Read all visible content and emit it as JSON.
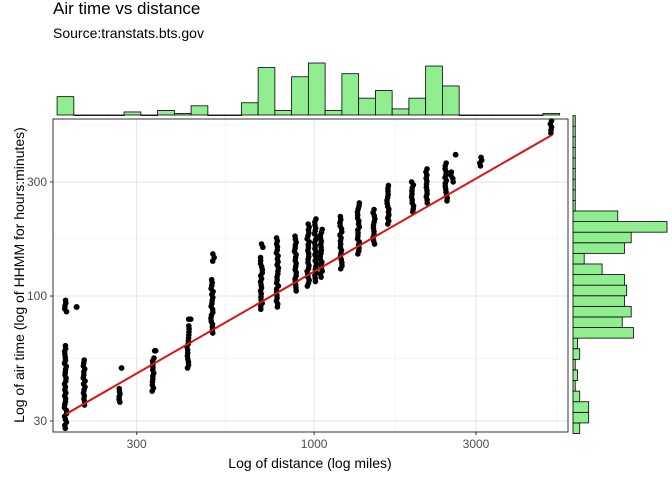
{
  "chart_data": {
    "type": "scatter",
    "title": "Air time vs distance",
    "subtitle": "Source:transtats.bts.gov",
    "xlabel": "Log of distance (log miles)",
    "ylabel": "Log of air time (log of HHMM for hours:minutes)",
    "x_scale": "log10",
    "y_scale": "log10",
    "xlim": [
      170,
      5600
    ],
    "ylim": [
      27,
      550
    ],
    "x_ticks": [
      {
        "value": 300,
        "label": "300"
      },
      {
        "value": 1000,
        "label": "1000"
      },
      {
        "value": 3000,
        "label": "3000"
      }
    ],
    "y_ticks": [
      {
        "value": 30,
        "label": "30"
      },
      {
        "value": 100,
        "label": "100"
      },
      {
        "value": 300,
        "label": "300"
      }
    ],
    "grid": true,
    "point_clusters": [
      {
        "x": 185,
        "y_min": 28,
        "y_max": 62
      },
      {
        "x": 185,
        "y_min": 86,
        "y_max": 96
      },
      {
        "x": 200,
        "y_min": 90,
        "y_max": 90
      },
      {
        "x": 210,
        "y_min": 35,
        "y_max": 54
      },
      {
        "x": 268,
        "y_min": 36,
        "y_max": 41
      },
      {
        "x": 270,
        "y_min": 50,
        "y_max": 50
      },
      {
        "x": 335,
        "y_min": 40,
        "y_max": 55
      },
      {
        "x": 340,
        "y_min": 59,
        "y_max": 59
      },
      {
        "x": 425,
        "y_min": 50,
        "y_max": 75
      },
      {
        "x": 430,
        "y_min": 80,
        "y_max": 80
      },
      {
        "x": 500,
        "y_min": 70,
        "y_max": 117
      },
      {
        "x": 505,
        "y_min": 140,
        "y_max": 150
      },
      {
        "x": 700,
        "y_min": 88,
        "y_max": 145
      },
      {
        "x": 705,
        "y_min": 160,
        "y_max": 165
      },
      {
        "x": 780,
        "y_min": 90,
        "y_max": 175
      },
      {
        "x": 880,
        "y_min": 105,
        "y_max": 178
      },
      {
        "x": 960,
        "y_min": 110,
        "y_max": 200
      },
      {
        "x": 1010,
        "y_min": 115,
        "y_max": 210
      },
      {
        "x": 1050,
        "y_min": 120,
        "y_max": 190
      },
      {
        "x": 1200,
        "y_min": 130,
        "y_max": 215
      },
      {
        "x": 1350,
        "y_min": 150,
        "y_max": 245
      },
      {
        "x": 1500,
        "y_min": 165,
        "y_max": 230
      },
      {
        "x": 1650,
        "y_min": 200,
        "y_max": 290
      },
      {
        "x": 1950,
        "y_min": 225,
        "y_max": 300
      },
      {
        "x": 2150,
        "y_min": 245,
        "y_max": 340
      },
      {
        "x": 2450,
        "y_min": 250,
        "y_max": 360
      },
      {
        "x": 2550,
        "y_min": 300,
        "y_max": 330
      },
      {
        "x": 2600,
        "y_min": 390,
        "y_max": 390
      },
      {
        "x": 3100,
        "y_min": 350,
        "y_max": 380
      },
      {
        "x": 5000,
        "y_min": 480,
        "y_max": 540
      }
    ],
    "fit_line": {
      "x": [
        185,
        5000
      ],
      "y": [
        32,
        470
      ],
      "color": "#dd1111"
    },
    "x_histogram": {
      "range": [
        185,
        5000
      ],
      "counts": [
        12,
        0,
        0,
        0,
        2,
        0,
        3,
        1,
        6,
        0,
        0,
        8,
        31,
        3,
        25,
        34,
        3,
        27,
        11,
        16,
        4,
        11,
        32,
        19,
        0,
        0,
        0,
        0,
        0,
        1
      ],
      "fill": "#90ee90"
    },
    "y_histogram": {
      "range": [
        28,
        540
      ],
      "counts": [
        3,
        7,
        7,
        3,
        1,
        2,
        1,
        3,
        2,
        27,
        22,
        26,
        23,
        24,
        23,
        13,
        5,
        23,
        26,
        42,
        20,
        1,
        1,
        1,
        1,
        1,
        1,
        1,
        1,
        1
      ],
      "fill": "#90ee90"
    }
  }
}
